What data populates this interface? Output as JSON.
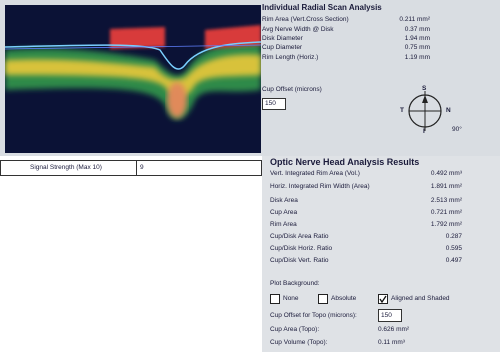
{
  "radial_scan": {
    "title": "Individual Radial Scan Analysis",
    "rows": [
      {
        "label": "Rim Area (Vert.Cross Section)",
        "value": "0.211 mm²"
      },
      {
        "label": "Avg Nerve Width @ Disk",
        "value": "0.37 mm"
      },
      {
        "label": "Disk Diameter",
        "value": "1.94 mm"
      },
      {
        "label": "Cup Diameter",
        "value": "0.75 mm"
      },
      {
        "label": "Rim Length (Horiz.)",
        "value": "1.19 mm"
      }
    ],
    "cup_offset_label": "Cup Offset (microns)",
    "cup_offset_value": "150",
    "compass": {
      "top": "S",
      "bottom": "I",
      "left": "T",
      "right": "N",
      "angle": "90°"
    }
  },
  "signal": {
    "label": "Signal Strength (Max 10)",
    "value": "9"
  },
  "onh": {
    "title": "Optic Nerve Head Analysis Results",
    "rows": [
      {
        "label": "Vert. Integrated Rim Area (Vol.)",
        "value": "0.492 mm³"
      },
      {
        "label": "Horiz. Integrated Rim Width (Area)",
        "value": "1.891 mm²"
      },
      {
        "label": "Disk Area",
        "value": "2.513 mm²"
      },
      {
        "label": "Cup Area",
        "value": "0.721 mm²"
      },
      {
        "label": "Rim Area",
        "value": "1.792 mm²"
      },
      {
        "label": "Cup/Disk Area Ratio",
        "value": "0.287"
      },
      {
        "label": "Cup/Disk Horiz. Ratio",
        "value": "0.595"
      },
      {
        "label": "Cup/Disk Vert. Ratio",
        "value": "0.497"
      }
    ],
    "plot_background": "Plot Background:",
    "options": [
      {
        "label": "None",
        "checked": false
      },
      {
        "label": "Absolute",
        "checked": false
      },
      {
        "label": "Aligned and Shaded",
        "checked": true
      }
    ],
    "topo_offset_label": "Cup Offset for Topo (microns):",
    "topo_offset_value": "150",
    "topo_rows": [
      {
        "label": "Cup Area (Topo):",
        "value": "0.626 mm²"
      },
      {
        "label": "Cup Volume (Topo):",
        "value": "0.11 mm³"
      }
    ]
  }
}
